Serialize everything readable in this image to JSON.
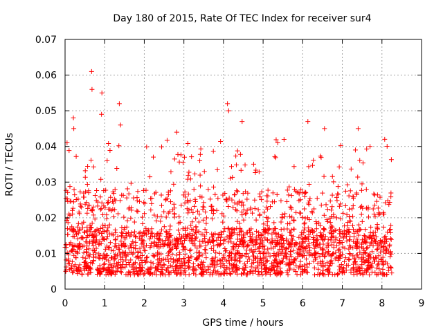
{
  "chart_data": {
    "type": "scatter",
    "title": "Day 180 of 2015, Rate Of TEC Index for receiver sur4",
    "xlabel": "GPS time / hours",
    "ylabel": "ROTI / TECUs",
    "xlim": [
      0,
      9
    ],
    "ylim": [
      0,
      0.07
    ],
    "xticks": [
      "0",
      "1",
      "2",
      "3",
      "4",
      "5",
      "6",
      "7",
      "8",
      "9"
    ],
    "yticks": [
      "0",
      "0.01",
      "0.02",
      "0.03",
      "0.04",
      "0.05",
      "0.06",
      "0.07"
    ],
    "grid": true,
    "marker": "+",
    "color": "#ff0000",
    "series": [
      {
        "name": "ROTI",
        "x_range": [
          0,
          8.25
        ],
        "baseline_range": [
          0.004,
          0.02
        ],
        "notable_points": [
          [
            0.67,
            0.061
          ],
          [
            0.68,
            0.056
          ],
          [
            0.93,
            0.055
          ],
          [
            0.92,
            0.049
          ],
          [
            0.21,
            0.048
          ],
          [
            0.22,
            0.045
          ],
          [
            1.37,
            0.052
          ],
          [
            1.4,
            0.046
          ],
          [
            4.1,
            0.052
          ],
          [
            4.13,
            0.05
          ],
          [
            4.47,
            0.047
          ],
          [
            6.13,
            0.047
          ],
          [
            6.55,
            0.045
          ],
          [
            7.4,
            0.045
          ],
          [
            8.07,
            0.042
          ],
          [
            0.05,
            0.041
          ],
          [
            2.82,
            0.044
          ],
          [
            5.37,
            0.041
          ],
          [
            7.7,
            0.04
          ],
          [
            3.4,
            0.036
          ]
        ]
      }
    ]
  }
}
